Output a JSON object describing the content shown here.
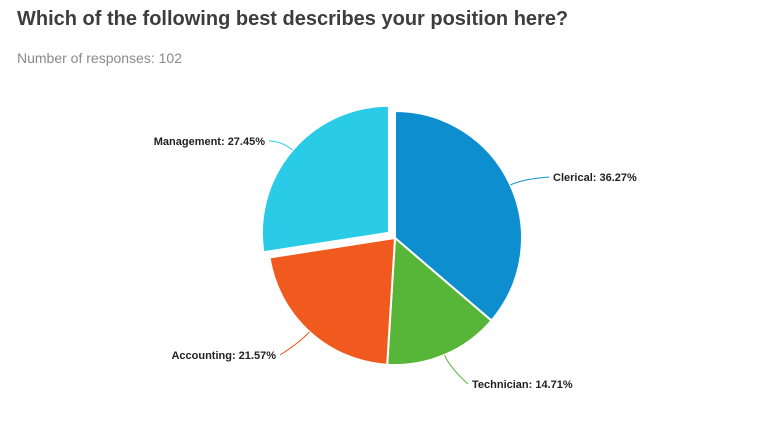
{
  "header": {
    "title": "Which of the following best describes your position here?",
    "subtitle": "Number of responses: 102"
  },
  "chart_data": {
    "type": "pie",
    "title": "Which of the following best describes your position here?",
    "subtitle": "Number of responses: 102",
    "legend": "none",
    "slices": [
      {
        "name": "Clerical",
        "value": 36.27,
        "label": "Clerical: 36.27%",
        "color": "#0d8ecf",
        "exploded": false
      },
      {
        "name": "Technician",
        "value": 14.71,
        "label": "Technician: 14.71%",
        "color": "#57b537",
        "exploded": false
      },
      {
        "name": "Accounting",
        "value": 21.57,
        "label": "Accounting: 21.57%",
        "color": "#f05a1f",
        "exploded": false
      },
      {
        "name": "Management",
        "value": 27.45,
        "label": "Management: 27.45%",
        "color": "#29cbe6",
        "exploded": true
      }
    ]
  }
}
